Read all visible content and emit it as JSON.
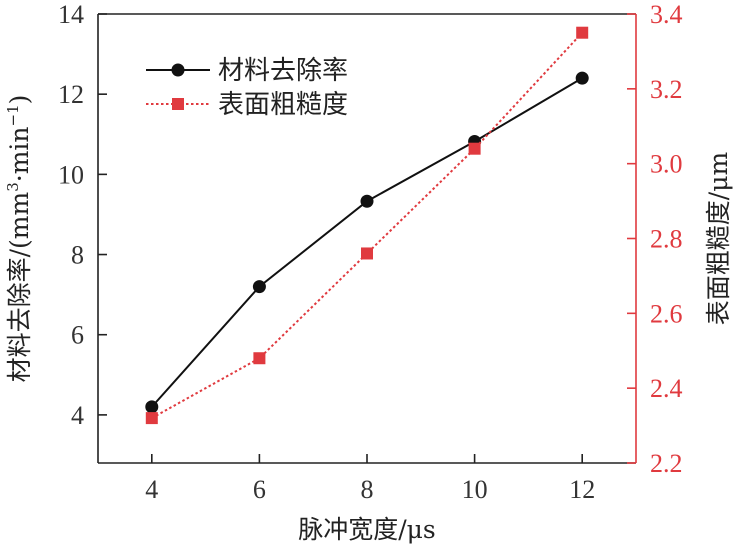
{
  "chart_data": {
    "type": "line",
    "title": "",
    "x": [
      4,
      6,
      8,
      10,
      12
    ],
    "xlabel": "脉冲宽度/μs",
    "xlim": [
      3,
      13
    ],
    "xticks": [
      4,
      6,
      8,
      10,
      12
    ],
    "y_left": {
      "label_main": "材料去除率/(mm",
      "label_sup1": "3",
      "label_mid": "·min",
      "label_sup2": "−1",
      "label_end": ")",
      "lim": [
        2.8,
        14
      ],
      "ticks": [
        4,
        6,
        8,
        10,
        12,
        14
      ],
      "color": "#222222"
    },
    "y_right": {
      "label": "表面粗糙度/μm",
      "lim": [
        2.2,
        3.4
      ],
      "ticks": [
        "2.2",
        "2.4",
        "2.6",
        "2.8",
        "3.0",
        "3.2",
        "3.4"
      ],
      "color": "#e03a3f"
    },
    "series": [
      {
        "name": "材料去除率",
        "axis": "left",
        "marker": "circle",
        "line": "solid",
        "color": "#111111",
        "values": [
          4.2,
          7.2,
          9.33,
          10.82,
          12.4
        ]
      },
      {
        "name": "表面粗糙度",
        "axis": "right",
        "marker": "square",
        "line": "dotted",
        "color": "#e03a3f",
        "values": [
          2.32,
          2.48,
          2.76,
          3.04,
          3.35
        ]
      }
    ],
    "legend_position": "top-left",
    "grid": false
  }
}
